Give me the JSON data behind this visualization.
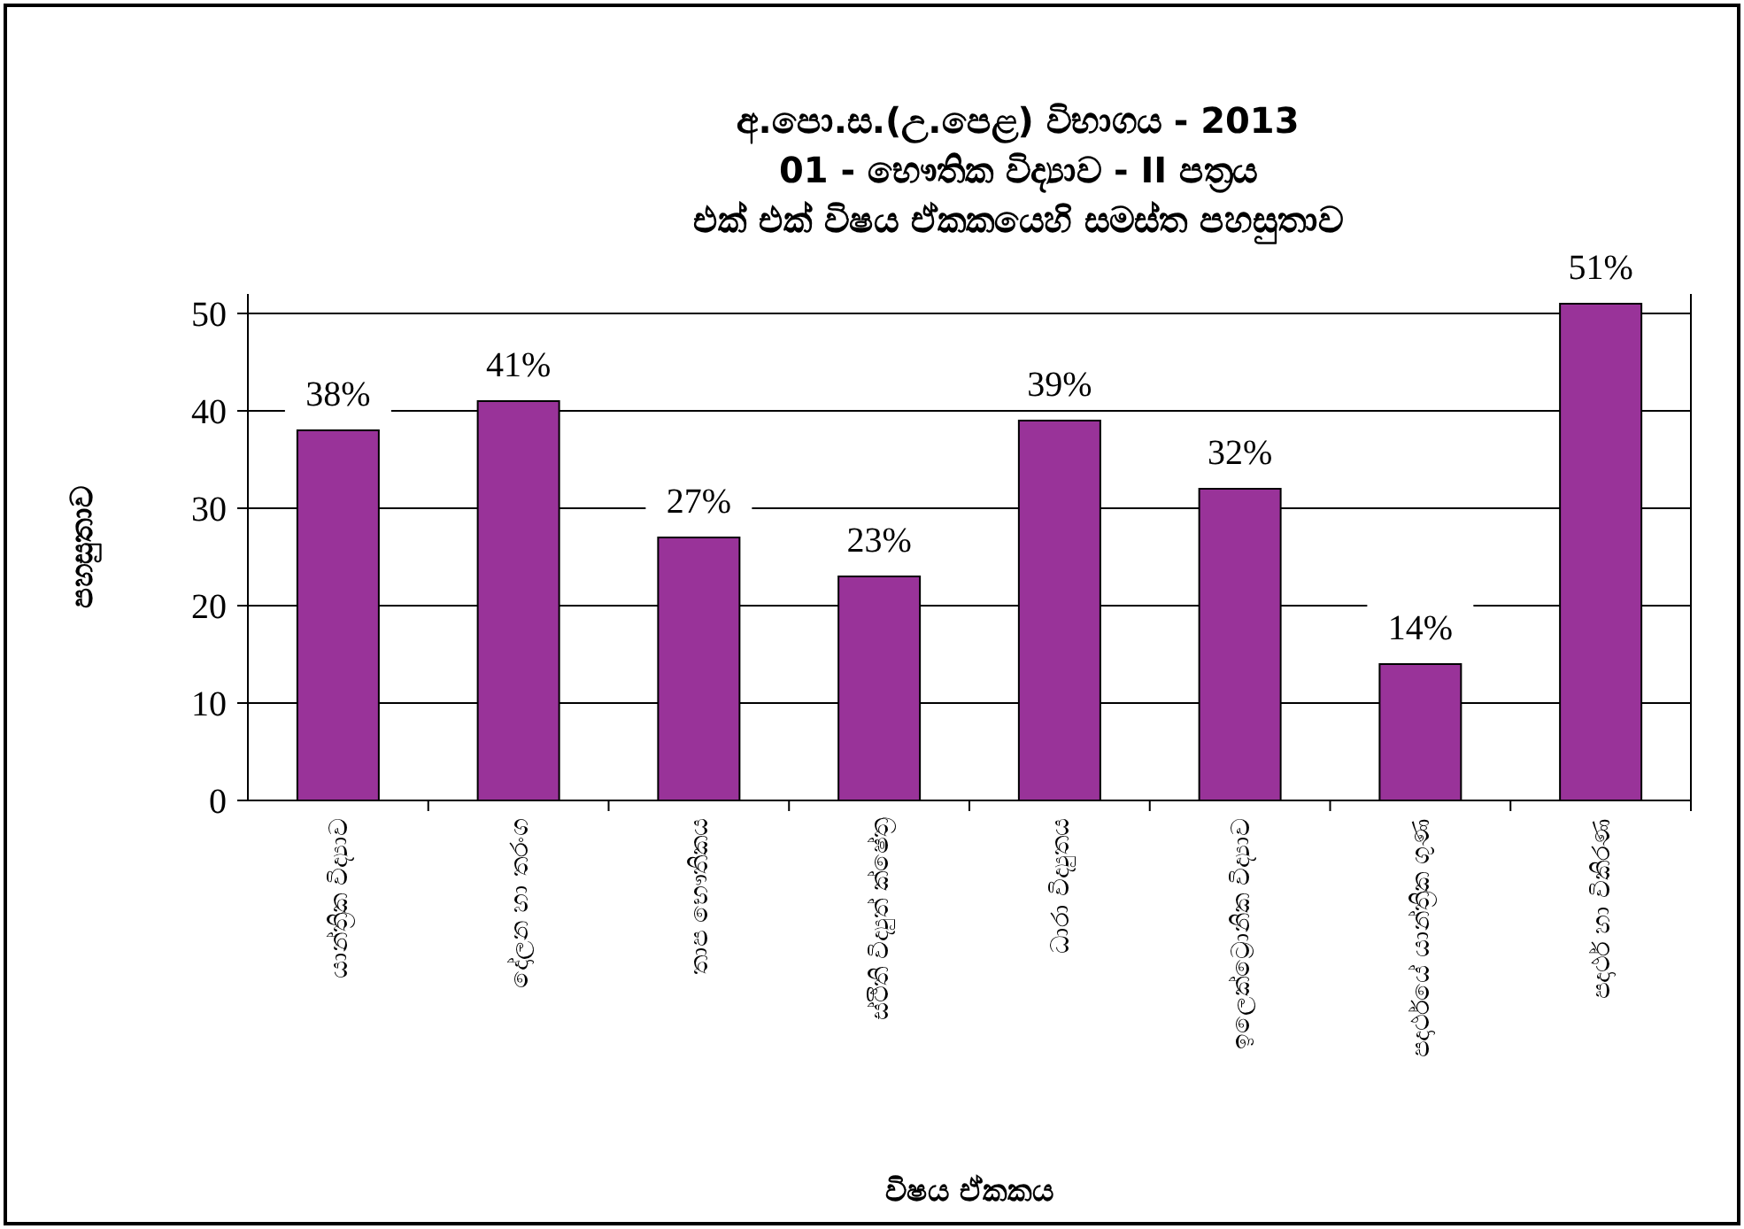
{
  "chart_data": {
    "type": "bar",
    "title": "අ.පො.ස.(උ.පෙළ) විභාගය - 2013",
    "subtitle": "01  -  භෞතික විද්‍යාව  -  II පත්‍රය\nඑක් එක් විෂය ඒකකයෙහි සමස්ත පහසුතාව",
    "xlabel": "විෂය ඒකකය",
    "ylabel": "පහසුතාව",
    "categories": [
      "යාන්ත්‍රික විද්‍යාව",
      "දෝලන හා තරංග",
      "තාප භෞතිකය",
      "ස්ථිති විද්‍යුත් ක්ෂේත්‍ර",
      "ධාරා විද්‍යුතය",
      "ඉලෙක්ට්‍රොනික විද්‍යාව",
      "පදාර්ථයේ යාන්ත්‍රික ගුණ",
      "පදාර්ථ හා විකිරණ"
    ],
    "values": [
      38,
      41,
      27,
      23,
      39,
      32,
      14,
      51
    ],
    "value_labels": [
      "38%",
      "41%",
      "27%",
      "23%",
      "39%",
      "32%",
      "14%",
      "51%"
    ],
    "color": "#993399",
    "ylim": [
      0,
      52
    ],
    "yticks": [
      0,
      10,
      20,
      30,
      40,
      50
    ],
    "grid": "y"
  }
}
